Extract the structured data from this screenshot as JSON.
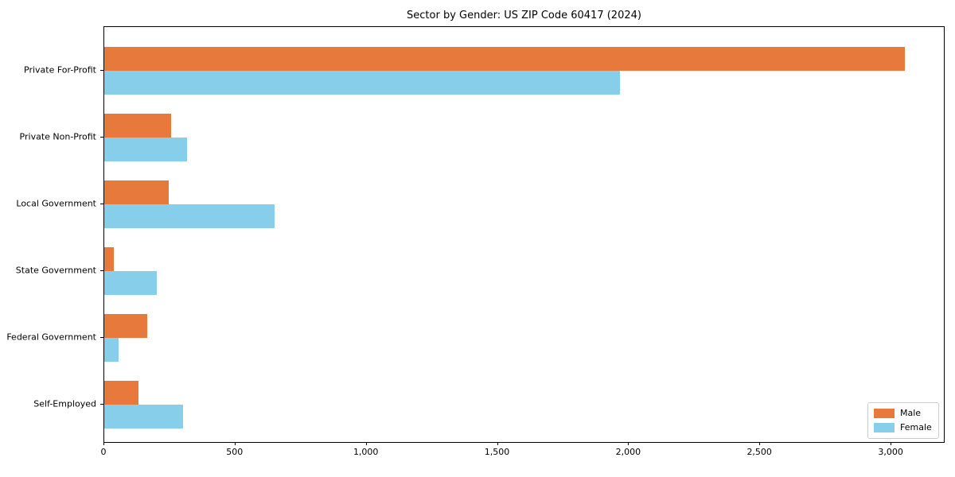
{
  "chart_data": {
    "type": "bar",
    "orientation": "horizontal",
    "title": "Sector by Gender: US ZIP Code 60417 (2024)",
    "categories": [
      "Private For-Profit",
      "Private Non-Profit",
      "Local Government",
      "State Government",
      "Federal Government",
      "Self-Employed"
    ],
    "series": [
      {
        "name": "Male",
        "color": "#e8793d",
        "values": [
          3050,
          255,
          245,
          35,
          165,
          130
        ]
      },
      {
        "name": "Female",
        "color": "#87ceeb",
        "values": [
          1965,
          315,
          650,
          200,
          55,
          300
        ]
      }
    ],
    "xlabel": "",
    "ylabel": "",
    "xlim": [
      0,
      3200
    ],
    "xticks": [
      0,
      500,
      1000,
      1500,
      2000,
      2500,
      3000
    ],
    "xtick_labels": [
      "0",
      "500",
      "1,000",
      "1,500",
      "2,000",
      "2,500",
      "3,000"
    ],
    "grid": false,
    "legend": {
      "position": "lower right",
      "entries": [
        "Male",
        "Female"
      ]
    }
  }
}
